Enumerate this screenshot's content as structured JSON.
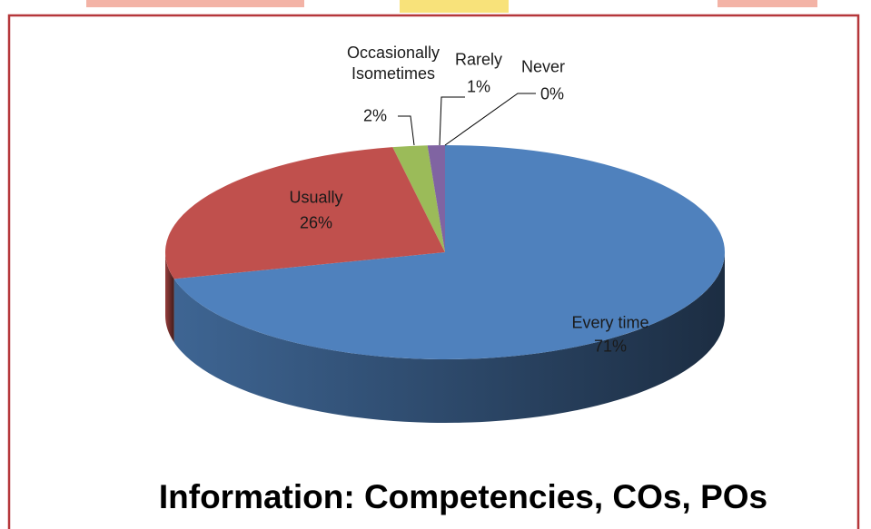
{
  "chart_data": {
    "type": "pie",
    "title": "Information: Competencies, COs, POs",
    "categories": [
      "Every time",
      "Usually",
      "Occasionally\nIsometimes",
      "Rarely",
      "Never"
    ],
    "values": [
      71,
      26,
      2,
      1,
      0
    ],
    "value_labels": [
      "71%",
      "26%",
      "2%",
      "1%",
      "0%"
    ],
    "colors": [
      "#4f81bd",
      "#c0504d",
      "#9bbb59",
      "#8064a2",
      "#4bacc6"
    ]
  }
}
